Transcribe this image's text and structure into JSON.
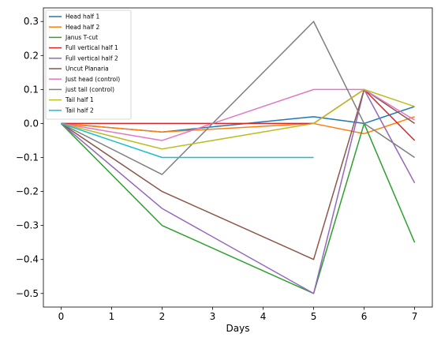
{
  "chart_data": {
    "type": "line",
    "title": "",
    "xlabel": "Days",
    "ylabel": "",
    "xlim": [
      -0.35,
      7.35
    ],
    "ylim": [
      -0.54,
      0.34
    ],
    "x_ticks": [
      0,
      1,
      2,
      3,
      4,
      5,
      6,
      7
    ],
    "y_ticks": [
      -0.5,
      -0.4,
      -0.3,
      -0.2,
      -0.1,
      0.0,
      0.1,
      0.2,
      0.3
    ],
    "x_tick_labels": [
      "0",
      "1",
      "2",
      "3",
      "4",
      "5",
      "6",
      "7"
    ],
    "y_tick_labels": [
      "−0.5",
      "−0.4",
      "−0.3",
      "−0.2",
      "−0.1",
      "0.0",
      "0.1",
      "0.2",
      "0.3"
    ],
    "grid": false,
    "legend_position": "top-left",
    "series": [
      {
        "name": "Head half 1",
        "color": "#1f77b4",
        "x": [
          0,
          2,
          5,
          6,
          7
        ],
        "y": [
          0,
          -0.025,
          0.02,
          0.0,
          0.05
        ]
      },
      {
        "name": "Head half 2",
        "color": "#ff7f0e",
        "x": [
          0,
          2,
          5,
          6,
          7
        ],
        "y": [
          0,
          -0.025,
          0.0,
          -0.03,
          0.02
        ]
      },
      {
        "name": "Janus T-cut",
        "color": "#2ca02c",
        "x": [
          0,
          2,
          5,
          6,
          7
        ],
        "y": [
          0,
          -0.3,
          -0.5,
          0.0,
          -0.35
        ]
      },
      {
        "name": "Full vertical half 1",
        "color": "#d62728",
        "x": [
          0,
          2,
          5,
          6,
          7
        ],
        "y": [
          0,
          0.0,
          0.0,
          0.1,
          -0.05
        ]
      },
      {
        "name": "Full vertical half 2",
        "color": "#9467bd",
        "x": [
          0,
          2,
          5,
          6,
          7
        ],
        "y": [
          0,
          -0.25,
          -0.5,
          0.1,
          -0.175
        ]
      },
      {
        "name": "Uncut Planaria",
        "color": "#8c564b",
        "x": [
          0,
          2,
          5,
          6,
          7
        ],
        "y": [
          0,
          -0.2,
          -0.4,
          0.1,
          0.0
        ]
      },
      {
        "name": "Just head (control)",
        "color": "#e377c2",
        "x": [
          0,
          2,
          5,
          6,
          7
        ],
        "y": [
          0,
          -0.05,
          0.1,
          0.1,
          0.01
        ]
      },
      {
        "name": "just tail (control)",
        "color": "#7f7f7f",
        "x": [
          0,
          2,
          5,
          6,
          7
        ],
        "y": [
          0,
          -0.15,
          0.3,
          0.0,
          -0.1
        ]
      },
      {
        "name": "Tail half 1",
        "color": "#bcbd22",
        "x": [
          0,
          2,
          5,
          6,
          7
        ],
        "y": [
          0,
          -0.075,
          0.0,
          0.1,
          0.05
        ]
      },
      {
        "name": "Tail half 2",
        "color": "#17becf",
        "x": [
          0,
          2,
          5
        ],
        "y": [
          0,
          -0.1,
          -0.1
        ]
      }
    ]
  }
}
